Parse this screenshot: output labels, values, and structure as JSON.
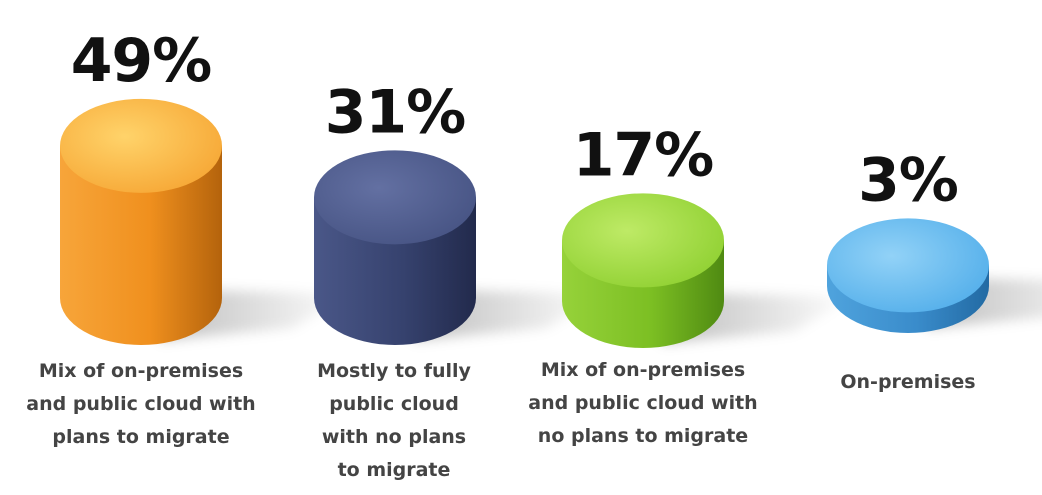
{
  "chart_data": {
    "type": "bar",
    "title": "",
    "xlabel": "",
    "ylabel": "",
    "ylim": [
      0,
      50
    ],
    "unit": "%",
    "categories": [
      "Mix of on-premises and public cloud with plans to migrate",
      "Mostly to fully public cloud with no plans to migrate",
      "Mix of on-premises and public cloud with no plans to migrate",
      "On-premises"
    ],
    "values": [
      49,
      31,
      17,
      3
    ],
    "value_labels": [
      "49%",
      "31%",
      "17%",
      "3%"
    ],
    "category_label_lines": [
      [
        "Mix of on-premises",
        "and public cloud with",
        "plans to migrate"
      ],
      [
        "Mostly to fully",
        "public cloud",
        "with no plans",
        "to migrate"
      ],
      [
        "Mix of on-premises",
        "and public cloud with",
        "no plans to migrate"
      ],
      [
        "On-premises"
      ]
    ],
    "colors": [
      "#F39A2A",
      "#3D4A7A",
      "#8CCB2F",
      "#4FA8E6"
    ]
  }
}
